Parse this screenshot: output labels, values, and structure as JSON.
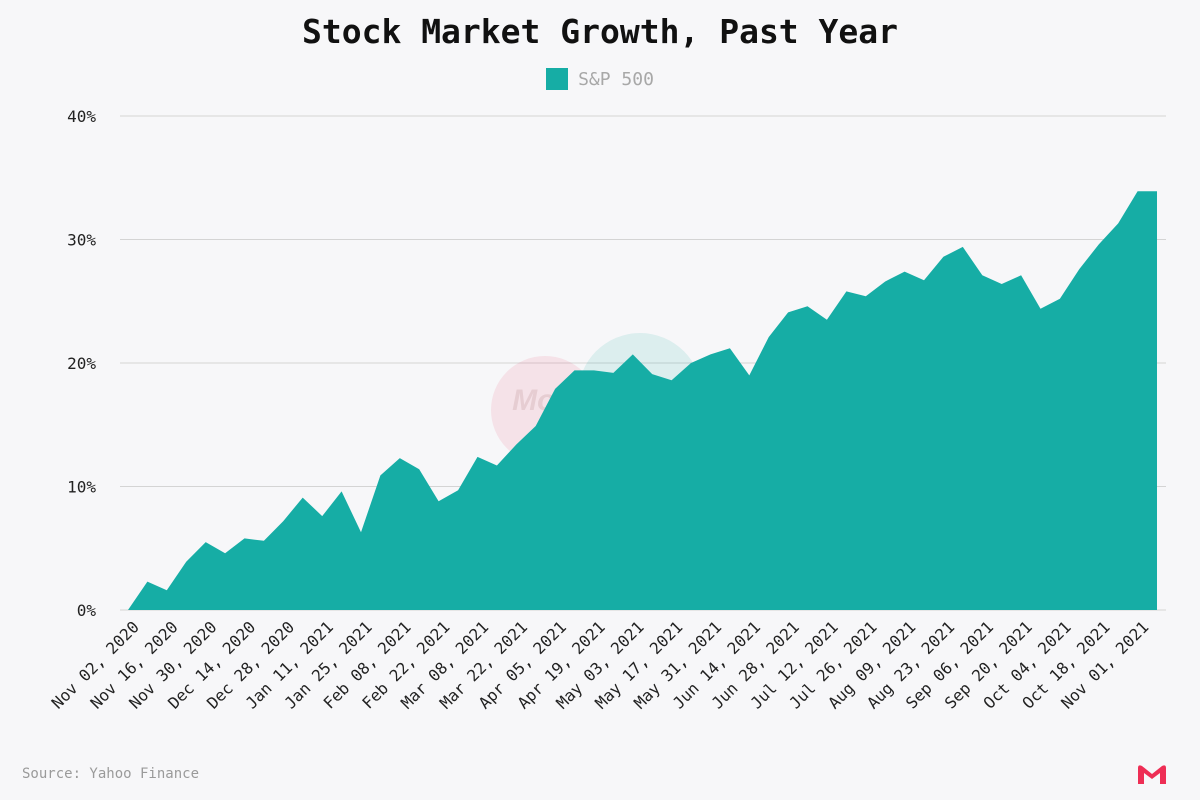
{
  "colors": {
    "area": "#16ada5",
    "grid": "#d4d4d4",
    "axis_text": "#222222",
    "background": "#f7f7f9",
    "brand": "#ee2e55"
  },
  "watermark": "MoneyMade",
  "footer": {
    "source": "Source: Yahoo Finance"
  },
  "brand_logo_icon": "moneymade-logo-icon",
  "chart_data": {
    "type": "area",
    "title": "Stock Market Growth, Past Year",
    "legend": [
      {
        "name": "S&P 500",
        "color": "#16ada5"
      }
    ],
    "legend_position": "top-center",
    "grid": true,
    "ylim": [
      0,
      40
    ],
    "yticks": [
      0,
      10,
      20,
      30,
      40
    ],
    "ytick_labels": [
      "0%",
      "10%",
      "20%",
      "30%",
      "40%"
    ],
    "xtick_labels": [
      "Nov 02, 2020",
      "Nov 16, 2020",
      "Nov 30, 2020",
      "Dec 14, 2020",
      "Dec 28, 2020",
      "Jan 11, 2021",
      "Jan 25, 2021",
      "Feb 08, 2021",
      "Feb 22, 2021",
      "Mar 08, 2021",
      "Mar 22, 2021",
      "Apr 05, 2021",
      "Apr 19, 2021",
      "May 03, 2021",
      "May 17, 2021",
      "May 31, 2021",
      "Jun 14, 2021",
      "Jun 28, 2021",
      "Jul 12, 2021",
      "Jul 26, 2021",
      "Aug 09, 2021",
      "Aug 23, 2021",
      "Sep 06, 2021",
      "Sep 20, 2021",
      "Oct 04, 2021",
      "Oct 18, 2021",
      "Nov 01, 2021"
    ],
    "series": [
      {
        "name": "S&P 500",
        "x": [
          "2020-11-02",
          "2020-11-09",
          "2020-11-16",
          "2020-11-23",
          "2020-11-30",
          "2020-12-07",
          "2020-12-14",
          "2020-12-21",
          "2020-12-28",
          "2021-01-04",
          "2021-01-11",
          "2021-01-18",
          "2021-01-25",
          "2021-02-01",
          "2021-02-08",
          "2021-02-15",
          "2021-02-22",
          "2021-03-01",
          "2021-03-08",
          "2021-03-15",
          "2021-03-22",
          "2021-03-29",
          "2021-04-05",
          "2021-04-12",
          "2021-04-19",
          "2021-04-26",
          "2021-05-03",
          "2021-05-10",
          "2021-05-17",
          "2021-05-24",
          "2021-05-31",
          "2021-06-07",
          "2021-06-14",
          "2021-06-21",
          "2021-06-28",
          "2021-07-05",
          "2021-07-12",
          "2021-07-19",
          "2021-07-26",
          "2021-08-02",
          "2021-08-09",
          "2021-08-16",
          "2021-08-23",
          "2021-08-30",
          "2021-09-06",
          "2021-09-13",
          "2021-09-20",
          "2021-09-27",
          "2021-10-04",
          "2021-10-11",
          "2021-10-18",
          "2021-10-25",
          "2021-11-01",
          "2021-11-08"
        ],
        "values": [
          0,
          2.3,
          1.6,
          3.9,
          5.5,
          4.6,
          5.8,
          5.6,
          7.2,
          9.1,
          7.6,
          9.6,
          6.3,
          10.9,
          12.3,
          11.4,
          8.8,
          9.7,
          12.4,
          11.7,
          13.4,
          14.9,
          17.9,
          19.4,
          19.4,
          19.2,
          20.7,
          19.1,
          18.6,
          20.0,
          20.7,
          21.2,
          19.0,
          22.1,
          24.1,
          24.6,
          23.5,
          25.8,
          25.4,
          26.6,
          27.4,
          26.7,
          28.6,
          29.4,
          27.1,
          26.4,
          27.1,
          24.4,
          25.2,
          27.6,
          29.6,
          31.3,
          33.9,
          33.9
        ]
      }
    ]
  }
}
